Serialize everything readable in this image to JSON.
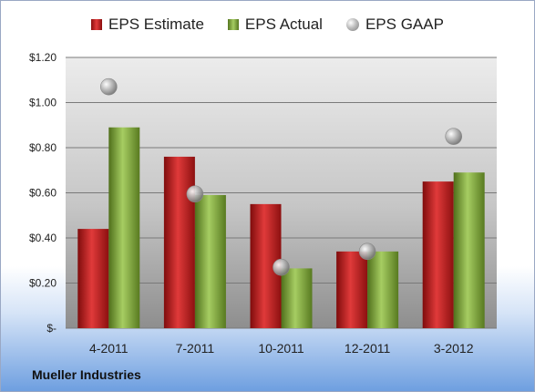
{
  "chart_data": {
    "type": "bar",
    "categories": [
      "4-2011",
      "7-2011",
      "10-2011",
      "12-2011",
      "3-2012"
    ],
    "series": [
      {
        "name": "EPS Estimate",
        "values": [
          0.44,
          0.76,
          0.55,
          0.34,
          0.65
        ],
        "color": "#c92525"
      },
      {
        "name": "EPS Actual",
        "values": [
          0.89,
          0.59,
          0.265,
          0.34,
          0.69
        ],
        "color": "#8db346"
      },
      {
        "name": "EPS GAAP",
        "values": [
          1.07,
          0.595,
          0.27,
          0.34,
          0.85
        ],
        "color": "#a8a8a8",
        "marker": "circle"
      }
    ],
    "yticks": [
      "$-",
      "$0.20",
      "$0.40",
      "$0.60",
      "$0.80",
      "$1.00",
      "$1.20"
    ],
    "ylim": [
      0,
      1.2
    ],
    "grid": true,
    "legend_position": "top"
  },
  "footer": {
    "company": "Mueller Industries"
  }
}
